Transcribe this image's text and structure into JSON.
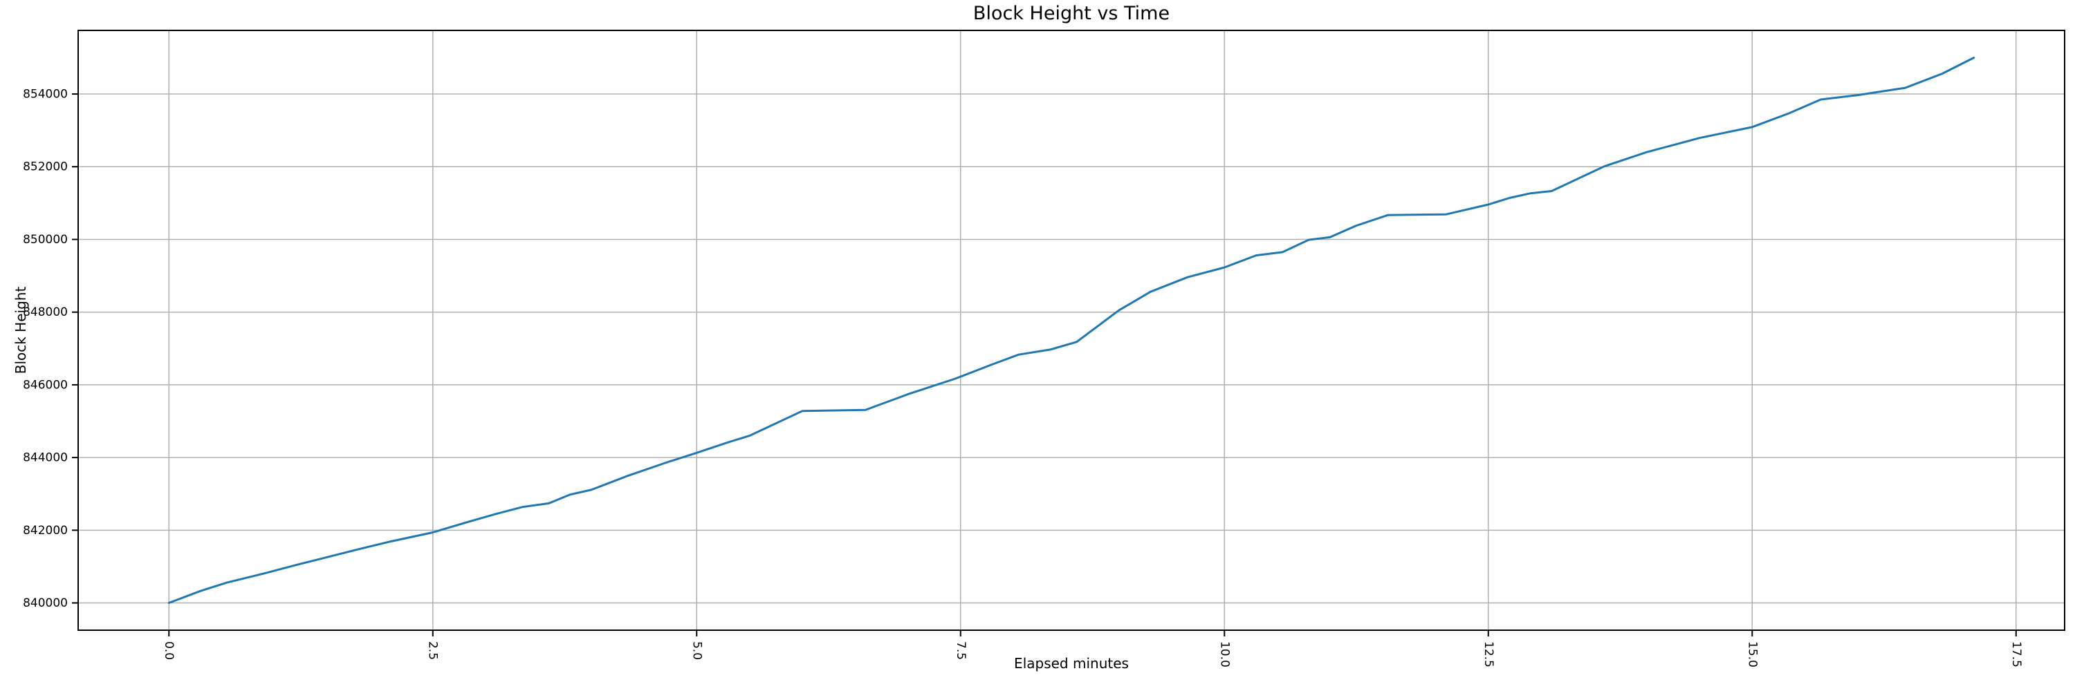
{
  "chart_data": {
    "type": "line",
    "title": "Block Height vs Time",
    "xlabel": "Elapsed minutes",
    "ylabel": "Block Height",
    "x": [
      0,
      0.3,
      0.55,
      0.9,
      1.2,
      1.5,
      1.8,
      2.1,
      2.5,
      2.8,
      3.1,
      3.35,
      3.6,
      3.8,
      4.0,
      4.35,
      4.7,
      5.0,
      5.3,
      5.5,
      6.0,
      6.6,
      7.0,
      7.45,
      7.8,
      8.05,
      8.35,
      8.6,
      9.0,
      9.3,
      9.65,
      10.0,
      10.3,
      10.55,
      10.8,
      11.0,
      11.25,
      11.55,
      12.1,
      12.5,
      12.7,
      12.9,
      13.1,
      13.6,
      14.0,
      14.5,
      15.0,
      15.35,
      15.65,
      16.0,
      16.45,
      16.8,
      17.1
    ],
    "y": [
      840000,
      840330,
      840560,
      840810,
      841040,
      841260,
      841480,
      841690,
      841940,
      842200,
      842450,
      842640,
      842740,
      842980,
      843110,
      843500,
      843850,
      844130,
      844420,
      844600,
      845280,
      845310,
      845740,
      846170,
      846560,
      846830,
      846970,
      847180,
      848050,
      848560,
      848960,
      849230,
      849560,
      849650,
      849990,
      850060,
      850380,
      850670,
      850690,
      850960,
      851140,
      851270,
      851330,
      852010,
      852400,
      852790,
      853090,
      853470,
      853850,
      853970,
      854170,
      854560,
      855000
    ],
    "xlim": [
      -0.86,
      17.96
    ],
    "ylim": [
      839250,
      855750
    ],
    "xticks": {
      "values": [
        0.0,
        2.5,
        5.0,
        7.5,
        10.0,
        12.5,
        15.0,
        17.5
      ],
      "labels": [
        "0.0",
        "2.5",
        "5.0",
        "7.5",
        "10.0",
        "12.5",
        "15.0",
        "17.5"
      ]
    },
    "yticks": {
      "values": [
        840000,
        842000,
        844000,
        846000,
        848000,
        850000,
        852000,
        854000
      ],
      "labels": [
        "840000",
        "842000",
        "844000",
        "846000",
        "848000",
        "850000",
        "852000",
        "854000"
      ]
    },
    "grid": true,
    "legend": false,
    "x_tick_rotation_deg": 90,
    "line_color": "#1f77b4",
    "grid_color": "#b0b0b0",
    "spine_color": "#000000",
    "background_color": "#ffffff"
  }
}
